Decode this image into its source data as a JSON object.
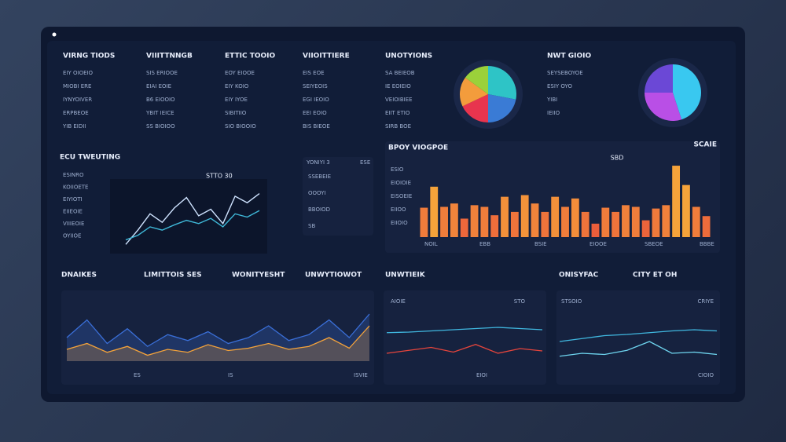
{
  "columns": [
    {
      "title": "VIRNG TIODS",
      "items": [
        "EIY OIOEIO",
        "MIOBI ERE",
        "IYNYOIVER",
        "ERPBEOE",
        "YIB EIDII"
      ]
    },
    {
      "title": "VIIITTNNGB",
      "items": [
        "SIS ERIOOE",
        "EIAI EOIE",
        "B6 EIOOIO",
        "YBIT IEICE",
        "SS BIOIOO"
      ]
    },
    {
      "title": "ETTIC TOOIO",
      "items": [
        "EOY EIOOE",
        "EIY KOIO",
        "EIY IYOE",
        "SIBITIIO",
        "SIO BIOOIO"
      ]
    },
    {
      "title": "VIIOITTIERE",
      "items": [
        "EIS EOE",
        "SEIYEOIS",
        "EGI IEOIO",
        "EEI EOIO",
        "BIS BIEOE"
      ]
    },
    {
      "title": "UNOTYIONS",
      "items": [
        "SA BEIEOB",
        "IE EOIEIO",
        "VEIOIBIEE",
        "EIIT ETIO",
        "SIRB BOE"
      ]
    },
    {
      "title": "NWT GIOIO",
      "items": [
        "SEYSEBOYOE",
        "ESIY OYO",
        "YIBI",
        "IEIIO"
      ]
    }
  ],
  "pies": [
    {
      "type": "pie",
      "values": [
        28,
        22,
        18,
        17,
        15
      ],
      "colors": [
        "#2ec4c6",
        "#3a7bd5",
        "#e8344e",
        "#f39c3c",
        "#9bd13a"
      ]
    },
    {
      "type": "pie",
      "values": [
        45,
        30,
        25
      ],
      "colors": [
        "#39c8f0",
        "#b94fe6",
        "#6b48d6"
      ]
    }
  ],
  "trend": {
    "type": "line",
    "title": "ECU TWEUTING",
    "label": "STTO 30",
    "items": [
      "ESINRO",
      "KOIIOETE",
      "EIYIOTI",
      "EIIEOIE",
      "VIIIEOIE",
      "OYIIOE"
    ],
    "series": [
      {
        "color": "#cfe3ff",
        "values": [
          8,
          30,
          55,
          42,
          64,
          80,
          52,
          62,
          40,
          82,
          72,
          86
        ]
      },
      {
        "color": "#3fb8d8",
        "values": [
          15,
          22,
          35,
          30,
          38,
          45,
          40,
          48,
          35,
          55,
          50,
          60
        ]
      }
    ]
  },
  "mini": {
    "title": "YONIYI 3",
    "tag": "ESE",
    "items": [
      "SSEBEIE",
      "OOOYI",
      "BBOIOD",
      "SB"
    ]
  },
  "bars": {
    "type": "bar",
    "title": "BPOY VIOGPOE",
    "corner": "SCAIE",
    "label": "SBD",
    "side": [
      "ESIO",
      "EIOIOIE",
      "EISOEIE",
      "EIIOO",
      "EIIOIO"
    ],
    "xlabels": [
      "NOIL",
      "EBB",
      "BSIE",
      "EIOOE",
      "SBEOE",
      "BBBE"
    ],
    "colors": [
      "#e8453c",
      "#f5a33a"
    ],
    "values": [
      35,
      60,
      36,
      40,
      22,
      38,
      36,
      26,
      48,
      30,
      50,
      40,
      30,
      48,
      36,
      46,
      30,
      16,
      35,
      30,
      38,
      36,
      20,
      34,
      38,
      85,
      62,
      36,
      25
    ]
  },
  "bottom": {
    "titles": [
      "DNAIKES",
      "LIMITTOIS SES",
      "WONITYESHT",
      "UNWYTIOWOT",
      "UNWTIEIK",
      "ONISYFAC",
      "CITY ET OH"
    ],
    "left": {
      "type": "area",
      "labels": [
        "ES",
        "IS",
        "ISVIE"
      ],
      "series": [
        {
          "color": "#3a6fd8",
          "values": [
            40,
            70,
            30,
            55,
            25,
            45,
            35,
            50,
            30,
            40,
            60,
            35,
            45,
            70,
            40,
            80
          ]
        },
        {
          "color": "#f5a33a",
          "values": [
            20,
            30,
            15,
            25,
            10,
            20,
            15,
            28,
            18,
            22,
            30,
            20,
            25,
            40,
            22,
            60
          ]
        }
      ]
    },
    "middle": {
      "type": "line",
      "labels": [
        "AIOIE",
        "STO",
        "EIOI"
      ],
      "series": [
        {
          "color": "#40b8e0",
          "values": [
            55,
            56,
            58,
            60,
            62,
            64,
            62,
            60
          ]
        },
        {
          "color": "#e8453c",
          "values": [
            20,
            25,
            30,
            22,
            35,
            20,
            28,
            24
          ]
        }
      ]
    },
    "right": {
      "type": "line",
      "labels": [
        "STSOIO",
        "CRIYE",
        "CIOIO"
      ],
      "series": [
        {
          "color": "#40b8e0",
          "values": [
            40,
            45,
            50,
            52,
            55,
            58,
            60,
            58
          ]
        },
        {
          "color": "#6fd6f0",
          "values": [
            15,
            20,
            18,
            25,
            40,
            20,
            22,
            18
          ]
        }
      ]
    }
  }
}
